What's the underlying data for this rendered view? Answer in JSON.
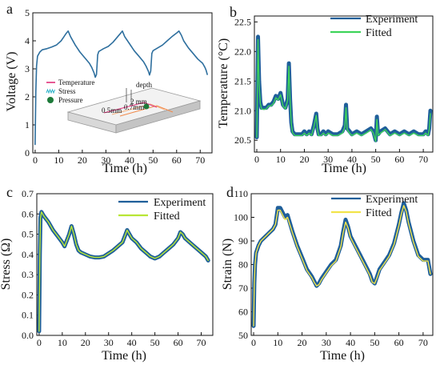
{
  "chart_data": [
    {
      "panel": "a",
      "type": "line",
      "xlabel": "Time (h)",
      "ylabel": "Voltage (V)",
      "xlim": [
        -1,
        75
      ],
      "ylim": [
        0,
        5
      ],
      "xticks": [
        "0",
        "10",
        "20",
        "30",
        "40",
        "50",
        "60",
        "70"
      ],
      "yticks": [
        "0",
        "1",
        "2",
        "3",
        "4",
        "5"
      ],
      "legend_position": "inset-left",
      "inset_legend": [
        "Temperature",
        "Stress",
        "Pressure"
      ],
      "inset_labels": [
        "depth",
        "2 mm",
        "0.7mm",
        "0.5mm"
      ],
      "colors": {
        "series": "#2e6f9e",
        "temperature": "#e0307a",
        "stress": "#27b0c8",
        "pressure": "#1d7a3a"
      },
      "series": [
        {
          "x": [
            0,
            0.3,
            0.6,
            1,
            2,
            3,
            5,
            7,
            9,
            11,
            12,
            13,
            14,
            15,
            17,
            19,
            21,
            23,
            24,
            25,
            25.5,
            26,
            26.5,
            27,
            29,
            31,
            33,
            35,
            36,
            37,
            38,
            40,
            42,
            44,
            46,
            47,
            48,
            48.5,
            49,
            49.5,
            50,
            52,
            54,
            56,
            58,
            60,
            61,
            62,
            63,
            65,
            67,
            69,
            71,
            72,
            72.5,
            73
          ],
          "values": [
            0.3,
            2.2,
            3.1,
            3.45,
            3.6,
            3.68,
            3.72,
            3.78,
            3.85,
            4.0,
            4.12,
            4.25,
            4.35,
            4.15,
            3.85,
            3.6,
            3.4,
            3.2,
            3.05,
            2.85,
            2.7,
            2.8,
            3.5,
            3.62,
            3.72,
            3.8,
            3.95,
            4.15,
            4.25,
            4.35,
            4.15,
            3.9,
            3.65,
            3.45,
            3.25,
            3.1,
            2.92,
            2.78,
            2.92,
            3.55,
            3.65,
            3.75,
            3.85,
            4.0,
            4.15,
            4.28,
            4.35,
            4.2,
            4.0,
            3.75,
            3.55,
            3.35,
            3.2,
            3.05,
            2.95,
            2.8
          ]
        }
      ]
    },
    {
      "panel": "b",
      "type": "line",
      "xlabel": "Time (h)",
      "ylabel": "Temperature (°C)",
      "xlim": [
        -1,
        74
      ],
      "ylim": [
        20.3,
        22.6
      ],
      "xticks": [
        "0",
        "10",
        "20",
        "30",
        "40",
        "50",
        "60",
        "70"
      ],
      "yticks": [
        "20.5",
        "21.0",
        "21.5",
        "22.0",
        "22.5"
      ],
      "grid": false,
      "legend_position": "top-right",
      "colors": {
        "experiment": "#1f5f9a",
        "fitted": "#3ed45a"
      },
      "series": [
        {
          "name": "Experiment",
          "x": [
            0,
            0.5,
            1,
            1.5,
            2,
            3,
            4,
            5,
            6,
            7,
            8,
            9,
            10,
            11,
            12,
            13,
            13.5,
            14,
            14.5,
            15,
            16,
            17,
            18,
            19,
            20,
            21,
            22,
            23,
            24,
            25,
            25.5,
            26,
            27,
            28,
            29,
            30,
            32,
            34,
            36,
            37,
            37.5,
            38,
            39,
            40,
            42,
            44,
            46,
            48,
            49,
            50,
            50.5,
            51,
            52,
            54,
            56,
            58,
            60,
            62,
            64,
            66,
            68,
            70,
            71,
            72,
            72.5,
            73
          ],
          "values": [
            20.55,
            22.25,
            21.5,
            21.15,
            21.05,
            21.05,
            21.05,
            21.1,
            21.1,
            21.15,
            21.25,
            21.2,
            21.3,
            21.1,
            21.05,
            21.2,
            21.8,
            21.2,
            20.8,
            20.65,
            20.6,
            20.6,
            20.6,
            20.6,
            20.65,
            20.6,
            20.65,
            20.6,
            20.75,
            20.95,
            20.7,
            20.6,
            20.6,
            20.65,
            20.6,
            20.65,
            20.6,
            20.6,
            20.65,
            20.75,
            21.1,
            20.7,
            20.65,
            20.6,
            20.65,
            20.6,
            20.65,
            20.7,
            20.65,
            20.5,
            20.9,
            20.6,
            20.65,
            20.7,
            20.6,
            20.65,
            20.6,
            20.65,
            20.6,
            20.65,
            20.6,
            20.6,
            20.65,
            20.6,
            20.7,
            21.0
          ]
        },
        {
          "name": "Fitted",
          "x": [
            0,
            0.5,
            1,
            1.5,
            2,
            3,
            4,
            5,
            6,
            7,
            8,
            9,
            10,
            11,
            12,
            13,
            13.5,
            14,
            14.5,
            15,
            16,
            17,
            18,
            19,
            20,
            21,
            22,
            23,
            24,
            25,
            25.5,
            26,
            27,
            28,
            29,
            30,
            32,
            34,
            36,
            37,
            37.5,
            38,
            39,
            40,
            42,
            44,
            46,
            48,
            49,
            50,
            50.5,
            51,
            52,
            54,
            56,
            58,
            60,
            62,
            64,
            66,
            68,
            70,
            71,
            72,
            72.5,
            73
          ],
          "values": [
            20.55,
            22.2,
            21.45,
            21.12,
            21.03,
            21.02,
            21.03,
            21.08,
            21.08,
            21.12,
            21.22,
            21.18,
            21.27,
            21.08,
            21.03,
            21.18,
            21.75,
            21.18,
            20.78,
            20.63,
            20.58,
            20.58,
            20.58,
            20.58,
            20.62,
            20.58,
            20.62,
            20.58,
            20.72,
            20.92,
            20.68,
            20.58,
            20.58,
            20.62,
            20.58,
            20.62,
            20.58,
            20.58,
            20.62,
            20.72,
            21.05,
            20.68,
            20.62,
            20.58,
            20.62,
            20.58,
            20.62,
            20.68,
            20.62,
            20.48,
            20.85,
            20.58,
            20.62,
            20.68,
            20.58,
            20.62,
            20.58,
            20.62,
            20.58,
            20.62,
            20.58,
            20.58,
            20.62,
            20.58,
            20.68,
            20.95
          ]
        }
      ]
    },
    {
      "panel": "c",
      "type": "line",
      "xlabel": "Time (h)",
      "ylabel": "Stress (Ω)",
      "xlim": [
        -1,
        75
      ],
      "ylim": [
        0,
        0.7
      ],
      "xticks": [
        "0",
        "10",
        "20",
        "30",
        "40",
        "50",
        "60",
        "70"
      ],
      "yticks": [
        "0.0",
        "0.1",
        "0.2",
        "0.3",
        "0.4",
        "0.5",
        "0.6",
        "0.7"
      ],
      "grid": false,
      "legend_position": "top-right",
      "colors": {
        "experiment": "#1f5f9a",
        "fitted": "#b8e635"
      },
      "series": [
        {
          "name": "Experiment",
          "x": [
            0,
            0.3,
            0.6,
            1,
            2,
            4,
            6,
            8,
            10,
            11,
            12,
            13,
            14,
            15,
            16,
            17,
            18,
            20,
            22,
            24,
            26,
            28,
            30,
            32,
            34,
            36,
            37,
            38,
            39,
            40,
            42,
            44,
            46,
            48,
            50,
            52,
            54,
            56,
            58,
            60,
            61,
            62,
            63,
            64,
            66,
            68,
            70,
            72,
            73
          ],
          "values": [
            0.02,
            0.4,
            0.58,
            0.61,
            0.59,
            0.56,
            0.52,
            0.49,
            0.46,
            0.44,
            0.47,
            0.5,
            0.54,
            0.5,
            0.45,
            0.42,
            0.41,
            0.4,
            0.39,
            0.385,
            0.385,
            0.39,
            0.405,
            0.42,
            0.44,
            0.46,
            0.49,
            0.52,
            0.5,
            0.48,
            0.46,
            0.43,
            0.41,
            0.39,
            0.38,
            0.39,
            0.41,
            0.43,
            0.45,
            0.48,
            0.51,
            0.5,
            0.48,
            0.47,
            0.45,
            0.43,
            0.41,
            0.39,
            0.37
          ]
        },
        {
          "name": "Fitted",
          "x": [
            0,
            0.3,
            0.6,
            1,
            2,
            4,
            6,
            8,
            10,
            11,
            12,
            13,
            14,
            15,
            16,
            17,
            18,
            20,
            22,
            24,
            26,
            28,
            30,
            32,
            34,
            36,
            37,
            38,
            39,
            40,
            42,
            44,
            46,
            48,
            50,
            52,
            54,
            56,
            58,
            60,
            61,
            62,
            63,
            64,
            66,
            68,
            70,
            72,
            73
          ],
          "values": [
            0.02,
            0.4,
            0.58,
            0.61,
            0.59,
            0.56,
            0.52,
            0.49,
            0.46,
            0.44,
            0.47,
            0.5,
            0.54,
            0.5,
            0.45,
            0.42,
            0.41,
            0.4,
            0.39,
            0.385,
            0.385,
            0.39,
            0.405,
            0.42,
            0.44,
            0.46,
            0.49,
            0.52,
            0.5,
            0.48,
            0.46,
            0.43,
            0.41,
            0.39,
            0.38,
            0.39,
            0.41,
            0.43,
            0.45,
            0.48,
            0.51,
            0.5,
            0.48,
            0.47,
            0.45,
            0.43,
            0.41,
            0.39,
            0.37
          ]
        }
      ]
    },
    {
      "panel": "d",
      "type": "line",
      "xlabel": "Time (h)",
      "ylabel": "Strain (N)",
      "xlim": [
        -1,
        74
      ],
      "ylim": [
        50,
        110
      ],
      "xticks": [
        "0",
        "10",
        "20",
        "30",
        "40",
        "50",
        "60",
        "70"
      ],
      "yticks": [
        "50",
        "60",
        "70",
        "80",
        "90",
        "100",
        "110"
      ],
      "grid": false,
      "legend_position": "top-right",
      "colors": {
        "experiment": "#1f5f9a",
        "fitted": "#f2e44a"
      },
      "series": [
        {
          "name": "Experiment",
          "x": [
            0,
            0.3,
            0.6,
            1,
            2,
            3,
            4,
            5,
            6,
            7,
            8,
            9,
            10,
            11,
            12,
            13,
            14,
            16,
            18,
            20,
            22,
            24,
            25,
            26,
            27,
            28,
            30,
            32,
            34,
            36,
            37,
            38,
            39,
            40,
            42,
            44,
            46,
            48,
            49,
            50,
            51,
            52,
            54,
            56,
            58,
            60,
            61,
            62,
            63,
            64,
            66,
            68,
            70,
            72,
            73
          ],
          "values": [
            54,
            72,
            80,
            85,
            88,
            90,
            91,
            92,
            93,
            94,
            95,
            97,
            104,
            104,
            102,
            100,
            101,
            94,
            88,
            83,
            78,
            75,
            73,
            71,
            72,
            74,
            77,
            80,
            82,
            88,
            94,
            99,
            96,
            92,
            88,
            84,
            80,
            76,
            73,
            72,
            75,
            78,
            81,
            84,
            89,
            97,
            102,
            106,
            103,
            98,
            90,
            84,
            82,
            82,
            76
          ]
        },
        {
          "name": "Fitted",
          "x": [
            0,
            0.3,
            0.6,
            1,
            2,
            3,
            4,
            5,
            6,
            7,
            8,
            9,
            10,
            11,
            12,
            13,
            14,
            16,
            18,
            20,
            22,
            24,
            25,
            26,
            27,
            28,
            30,
            32,
            34,
            36,
            37,
            38,
            39,
            40,
            42,
            44,
            46,
            48,
            49,
            50,
            51,
            52,
            54,
            56,
            58,
            60,
            61,
            62,
            63,
            64,
            66,
            68,
            70,
            72,
            73
          ],
          "values": [
            54,
            72,
            80,
            85,
            88,
            90,
            91,
            92,
            93,
            94,
            95,
            97,
            103,
            103,
            101,
            99,
            100,
            93.5,
            87.5,
            82.5,
            77.5,
            74.5,
            72.5,
            71,
            71.5,
            73.5,
            76.5,
            79.5,
            81.5,
            87.5,
            93.5,
            98,
            95.5,
            91.5,
            87.5,
            83.5,
            79.5,
            75.5,
            72.5,
            72,
            74.5,
            77.5,
            80.5,
            83.5,
            88.5,
            96.5,
            101.5,
            105,
            102.5,
            97.5,
            89.5,
            83.5,
            81.5,
            81.5,
            76
          ]
        }
      ]
    }
  ]
}
